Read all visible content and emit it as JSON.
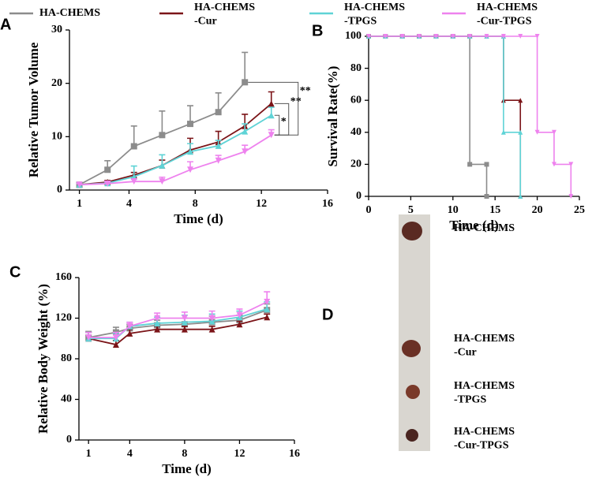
{
  "chart_data": [
    {
      "type": "line",
      "panel_label": "A",
      "x_label": "Time (d)",
      "y_label": "Relative Tumor Volume",
      "x": [
        1,
        2.7,
        4.3,
        6,
        7.7,
        9.4,
        11,
        12.6
      ],
      "xlim": [
        0.4,
        16
      ],
      "xticks": [
        1,
        4,
        8,
        12,
        16
      ],
      "ylim": [
        0,
        30
      ],
      "yticks": [
        0,
        10,
        20,
        30
      ],
      "series": [
        {
          "name": "HA-CHEMS",
          "color": "#8c8c8c",
          "values": [
            1,
            3.8,
            8.2,
            10.3,
            12.4,
            14.6,
            20.2,
            null
          ],
          "errors": [
            0.2,
            1.7,
            3.8,
            4.5,
            3.4,
            3.6,
            5.6,
            null
          ]
        },
        {
          "name": "HA-CHEMS\n-Cur",
          "color": "#7b1418",
          "values": [
            1,
            1.5,
            2.8,
            4.6,
            7.5,
            9,
            12,
            16.2
          ],
          "errors": [
            0.2,
            0.3,
            0.5,
            1,
            2.2,
            2,
            2.2,
            2.2
          ]
        },
        {
          "name": "HA-CHEMS\n-TPGS",
          "color": "#5fd3d6",
          "values": [
            1,
            1.3,
            2.5,
            4.6,
            7.2,
            8.3,
            11,
            14
          ],
          "errors": [
            0.2,
            0.3,
            2,
            2,
            1.5,
            1,
            1.4,
            1.5
          ]
        },
        {
          "name": "HA-CHEMS\n-Cur-TPGS",
          "color": "#ee82ee",
          "values": [
            1,
            1.2,
            1.6,
            1.6,
            3.8,
            5.5,
            7.2,
            10.3
          ],
          "errors": [
            0.2,
            0.3,
            0.5,
            0.8,
            1.5,
            1,
            1.2,
            1
          ]
        }
      ],
      "annotations": [
        "*",
        "**",
        "**"
      ]
    },
    {
      "type": "step",
      "panel_label": "B",
      "x_label": "Time (d)",
      "y_label": "Survival Rate(%)",
      "xlim": [
        0,
        25
      ],
      "xticks": [
        0,
        5,
        10,
        15,
        20,
        25
      ],
      "ylim": [
        0,
        100
      ],
      "yticks": [
        0,
        20,
        40,
        60,
        80,
        100
      ],
      "series": [
        {
          "color": "#8c8c8c",
          "x": [
            0,
            2,
            4,
            6,
            8,
            10,
            12,
            12,
            14,
            14
          ],
          "values": [
            100,
            100,
            100,
            100,
            100,
            100,
            100,
            20,
            20,
            0
          ]
        },
        {
          "color": "#7b1418",
          "x": [
            0,
            2,
            4,
            6,
            8,
            10,
            12,
            14,
            16,
            16,
            18,
            18
          ],
          "values": [
            100,
            100,
            100,
            100,
            100,
            100,
            100,
            100,
            100,
            60,
            60,
            0
          ]
        },
        {
          "color": "#5fd3d6",
          "x": [
            0,
            2,
            4,
            6,
            8,
            10,
            12,
            14,
            16,
            16,
            18,
            18
          ],
          "values": [
            100,
            100,
            100,
            100,
            100,
            100,
            100,
            100,
            100,
            40,
            40,
            0
          ]
        },
        {
          "color": "#ee82ee",
          "x": [
            0,
            2,
            4,
            6,
            8,
            10,
            12,
            14,
            16,
            18,
            20,
            20,
            22,
            22,
            24,
            24
          ],
          "values": [
            100,
            100,
            100,
            100,
            100,
            100,
            100,
            100,
            100,
            100,
            100,
            40,
            40,
            20,
            20,
            0
          ]
        }
      ]
    },
    {
      "type": "line",
      "panel_label": "C",
      "x_label": "Time (d)",
      "y_label": "Relative Body Weight (%)",
      "x": [
        1,
        3,
        4,
        6,
        8,
        10,
        12,
        14
      ],
      "xlim": [
        0.3,
        16
      ],
      "xticks": [
        1,
        4,
        8,
        12,
        16
      ],
      "ylim": [
        0,
        160
      ],
      "yticks": [
        0,
        40,
        80,
        120,
        160
      ],
      "series": [
        {
          "color": "#8c8c8c",
          "values": [
            101,
            106,
            110,
            113,
            114,
            116,
            118,
            128
          ],
          "errors": [
            6,
            5,
            4,
            5,
            6,
            6,
            5,
            6
          ]
        },
        {
          "color": "#7b1418",
          "values": [
            100,
            94,
            105,
            109,
            109,
            109,
            114,
            121
          ],
          "errors": [
            6,
            4,
            4,
            3,
            3,
            3,
            3,
            3
          ]
        },
        {
          "color": "#5fd3d6",
          "values": [
            100,
            100,
            112,
            115,
            116,
            117,
            121,
            129
          ],
          "errors": [
            6,
            5,
            4,
            6,
            7,
            7,
            6,
            7
          ]
        },
        {
          "color": "#ee82ee",
          "values": [
            101,
            101,
            112,
            120,
            120,
            120,
            123,
            136
          ],
          "errors": [
            5,
            5,
            4,
            5,
            6,
            7,
            6,
            10
          ]
        }
      ]
    }
  ],
  "panel_d": {
    "label": "D",
    "samples": [
      "HA-CHEMS",
      "HA-CHEMS\n-Cur",
      "HA-CHEMS\n-TPGS",
      "HA-CHEMS\n-Cur-TPGS"
    ]
  }
}
